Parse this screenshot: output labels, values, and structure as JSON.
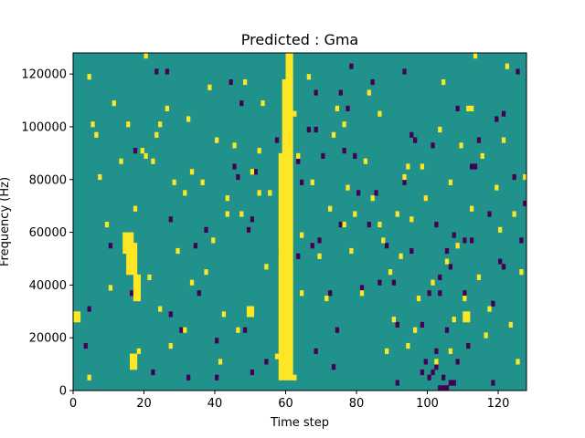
{
  "chart_data": {
    "type": "heatmap",
    "title": "Predicted : Gma",
    "xlabel": "Time step",
    "ylabel": "Frequency (Hz)",
    "xlim": [
      0,
      128
    ],
    "ylim": [
      0,
      128000
    ],
    "x_ticks": [
      0,
      20,
      40,
      60,
      80,
      100,
      120
    ],
    "y_ticks": [
      0,
      20000,
      40000,
      60000,
      80000,
      100000,
      120000
    ],
    "colors": {
      "low": "#440154",
      "mid": "#21918c",
      "high": "#fde725"
    },
    "grid": false,
    "legend": "none",
    "time_steps": 128,
    "frequency_bins": 64,
    "frequency_bin_width_hz": 2000,
    "low_cells": [
      [
        3,
        8
      ],
      [
        4,
        15
      ],
      [
        23,
        60
      ],
      [
        26,
        60
      ],
      [
        32,
        2
      ],
      [
        35,
        18
      ],
      [
        34,
        27
      ],
      [
        40,
        9
      ],
      [
        40,
        2
      ],
      [
        44,
        58
      ],
      [
        45,
        42
      ],
      [
        46,
        40
      ],
      [
        48,
        11
      ],
      [
        47,
        54
      ],
      [
        49,
        30
      ],
      [
        51,
        41
      ],
      [
        50,
        3
      ],
      [
        54,
        5
      ],
      [
        57,
        47
      ],
      [
        58,
        26
      ],
      [
        63,
        25
      ],
      [
        64,
        39
      ],
      [
        66,
        49
      ],
      [
        67,
        27
      ],
      [
        68,
        49
      ],
      [
        69,
        28
      ],
      [
        68,
        7
      ],
      [
        70,
        44
      ],
      [
        72,
        18
      ],
      [
        74,
        11
      ],
      [
        73,
        4
      ],
      [
        75,
        31
      ],
      [
        75,
        56
      ],
      [
        76,
        45
      ],
      [
        77,
        53
      ],
      [
        78,
        61
      ],
      [
        79,
        44
      ],
      [
        80,
        37
      ],
      [
        81,
        19
      ],
      [
        83,
        31
      ],
      [
        84,
        58
      ],
      [
        85,
        37
      ],
      [
        86,
        20
      ],
      [
        88,
        27
      ],
      [
        90,
        20
      ],
      [
        91,
        1
      ],
      [
        91,
        12
      ],
      [
        93,
        39
      ],
      [
        93,
        60
      ],
      [
        95,
        48
      ],
      [
        96,
        47
      ],
      [
        98,
        12
      ],
      [
        99,
        36
      ],
      [
        100,
        18
      ],
      [
        102,
        7
      ],
      [
        102,
        31
      ],
      [
        103,
        18
      ],
      [
        105,
        11
      ],
      [
        105,
        26
      ],
      [
        106,
        23
      ],
      [
        107,
        29
      ],
      [
        108,
        53
      ],
      [
        108,
        5
      ],
      [
        110,
        28
      ],
      [
        110,
        18
      ],
      [
        111,
        8
      ],
      [
        112,
        28
      ],
      [
        113,
        42
      ],
      [
        114,
        47
      ],
      [
        117,
        33
      ],
      [
        118,
        1
      ],
      [
        119,
        51
      ],
      [
        120,
        24
      ],
      [
        121,
        23
      ],
      [
        121,
        52
      ],
      [
        124,
        40
      ],
      [
        125,
        60
      ],
      [
        126,
        28
      ],
      [
        127,
        35
      ],
      [
        27,
        14
      ],
      [
        16,
        18
      ],
      [
        30,
        11
      ],
      [
        103,
        21
      ],
      [
        37,
        30
      ],
      [
        63,
        43
      ],
      [
        112,
        42
      ],
      [
        22,
        3
      ],
      [
        10,
        27
      ],
      [
        27,
        32
      ],
      [
        118,
        16
      ],
      [
        17,
        45
      ],
      [
        50,
        32
      ],
      [
        98,
        3
      ],
      [
        68,
        56
      ],
      [
        101,
        46
      ],
      [
        95,
        26
      ],
      [
        100,
        2
      ],
      [
        104,
        2
      ],
      [
        103,
        0
      ],
      [
        104,
        0
      ],
      [
        105,
        0
      ],
      [
        102,
        4
      ],
      [
        101,
        3
      ],
      [
        106,
        1
      ],
      [
        107,
        1
      ],
      [
        99,
        5
      ]
    ],
    "high_cells": [
      [
        4,
        59
      ],
      [
        5,
        50
      ],
      [
        7,
        40
      ],
      [
        9,
        31
      ],
      [
        10,
        19
      ],
      [
        11,
        54
      ],
      [
        13,
        43
      ],
      [
        15,
        50
      ],
      [
        17,
        34
      ],
      [
        19,
        45
      ],
      [
        18,
        7
      ],
      [
        20,
        44
      ],
      [
        20,
        63
      ],
      [
        21,
        21
      ],
      [
        23,
        48
      ],
      [
        24,
        15
      ],
      [
        26,
        53
      ],
      [
        28,
        39
      ],
      [
        29,
        26
      ],
      [
        31,
        11
      ],
      [
        32,
        51
      ],
      [
        33,
        41
      ],
      [
        36,
        39
      ],
      [
        37,
        22
      ],
      [
        38,
        57
      ],
      [
        39,
        28
      ],
      [
        41,
        5
      ],
      [
        42,
        14
      ],
      [
        43,
        36
      ],
      [
        45,
        46
      ],
      [
        46,
        11
      ],
      [
        47,
        33
      ],
      [
        48,
        58
      ],
      [
        50,
        41
      ],
      [
        52,
        45
      ],
      [
        53,
        54
      ],
      [
        54,
        23
      ],
      [
        55,
        37
      ],
      [
        57,
        6
      ],
      [
        66,
        59
      ],
      [
        67,
        39
      ],
      [
        69,
        25
      ],
      [
        71,
        17
      ],
      [
        72,
        34
      ],
      [
        73,
        48
      ],
      [
        74,
        53
      ],
      [
        76,
        50
      ],
      [
        77,
        38
      ],
      [
        78,
        26
      ],
      [
        79,
        33
      ],
      [
        81,
        18
      ],
      [
        82,
        43
      ],
      [
        83,
        56
      ],
      [
        84,
        36
      ],
      [
        86,
        52
      ],
      [
        87,
        28
      ],
      [
        88,
        7
      ],
      [
        89,
        22
      ],
      [
        90,
        13
      ],
      [
        91,
        33
      ],
      [
        92,
        25
      ],
      [
        93,
        40
      ],
      [
        94,
        8
      ],
      [
        95,
        32
      ],
      [
        96,
        11
      ],
      [
        97,
        17
      ],
      [
        98,
        42
      ],
      [
        99,
        36
      ],
      [
        101,
        20
      ],
      [
        103,
        49
      ],
      [
        104,
        58
      ],
      [
        105,
        24
      ],
      [
        106,
        39
      ],
      [
        107,
        13
      ],
      [
        108,
        27
      ],
      [
        109,
        46
      ],
      [
        110,
        17
      ],
      [
        111,
        53
      ],
      [
        112,
        34
      ],
      [
        113,
        63
      ],
      [
        114,
        21
      ],
      [
        115,
        44
      ],
      [
        117,
        15
      ],
      [
        119,
        38
      ],
      [
        120,
        30
      ],
      [
        121,
        47
      ],
      [
        122,
        61
      ],
      [
        123,
        12
      ],
      [
        124,
        33
      ],
      [
        125,
        5
      ],
      [
        126,
        22
      ],
      [
        127,
        40
      ],
      [
        62,
        2
      ],
      [
        63,
        44
      ],
      [
        64,
        18
      ],
      [
        62,
        52
      ],
      [
        64,
        29
      ],
      [
        40,
        47
      ],
      [
        33,
        20
      ],
      [
        86,
        31
      ],
      [
        106,
        7
      ],
      [
        52,
        37
      ],
      [
        31,
        37
      ],
      [
        102,
        5
      ],
      [
        6,
        48
      ],
      [
        27,
        8
      ],
      [
        76,
        31
      ],
      [
        112,
        53
      ],
      [
        43,
        33
      ],
      [
        24,
        50
      ],
      [
        116,
        10
      ],
      [
        94,
        42
      ],
      [
        22,
        43
      ],
      [
        4,
        2
      ]
    ],
    "high_blocks": [
      {
        "t": [
          58,
          62
        ],
        "f": [
          4000,
          90000
        ]
      },
      {
        "t": [
          59,
          62
        ],
        "f": [
          90000,
          118000
        ]
      },
      {
        "t": [
          60,
          62
        ],
        "f": [
          118000,
          128000
        ]
      },
      {
        "t": [
          15,
          18
        ],
        "f": [
          44000,
          56000
        ]
      },
      {
        "t": [
          17,
          19
        ],
        "f": [
          34000,
          44000
        ]
      },
      {
        "t": [
          16,
          18
        ],
        "f": [
          8000,
          14000
        ]
      },
      {
        "t": [
          14,
          17
        ],
        "f": [
          52000,
          60000
        ]
      },
      {
        "t": [
          0,
          2
        ],
        "f": [
          26000,
          30000
        ]
      },
      {
        "t": [
          49,
          51
        ],
        "f": [
          28000,
          32000
        ]
      },
      {
        "t": [
          110,
          112
        ],
        "f": [
          26000,
          30000
        ]
      }
    ]
  }
}
